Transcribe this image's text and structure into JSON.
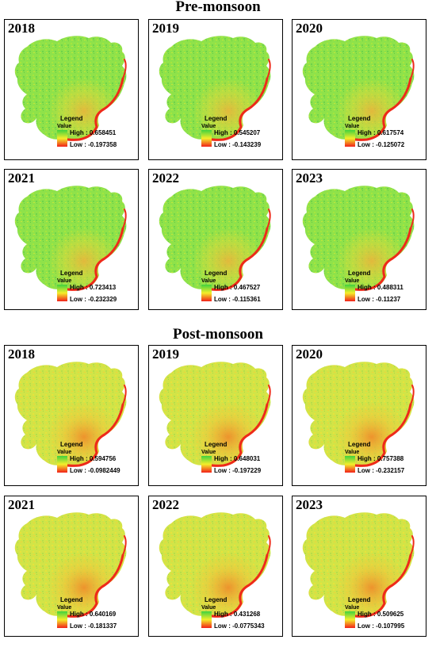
{
  "sections": [
    {
      "title": "Pre-monsoon",
      "palette": "green",
      "panels": [
        {
          "year": "2018",
          "legend": "Legend",
          "value_label": "Value",
          "high": "High : 0.658451",
          "low": "Low : -0.197358"
        },
        {
          "year": "2019",
          "legend": "Legend",
          "value_label": "Value",
          "high": "High : 0.545207",
          "low": "Low : -0.143239"
        },
        {
          "year": "2020",
          "legend": "Legend",
          "value_label": "Value",
          "high": "High : 0.617574",
          "low": "Low : -0.125072"
        },
        {
          "year": "2021",
          "legend": "Legend",
          "value_label": "Value",
          "high": "High : 0.723413",
          "low": "Low : -0.232329"
        },
        {
          "year": "2022",
          "legend": "Legend",
          "value_label": "Value",
          "high": "High : 0.467527",
          "low": "Low : -0.115361"
        },
        {
          "year": "2023",
          "legend": "Legend",
          "value_label": "Value",
          "high": "High : 0.488311",
          "low": "Low : -0.11237"
        }
      ]
    },
    {
      "title": "Post-monsoon",
      "palette": "yellow",
      "panels": [
        {
          "year": "2018",
          "legend": "Legend",
          "value_label": "Value",
          "high": "High : 0.594756",
          "low": "Low : -0.0982449"
        },
        {
          "year": "2019",
          "legend": "Legend",
          "value_label": "Value",
          "high": "High : 0.648031",
          "low": "Low : -0.197229"
        },
        {
          "year": "2020",
          "legend": "Legend",
          "value_label": "Value",
          "high": "High : 0.757388",
          "low": "Low : -0.232157"
        },
        {
          "year": "2021",
          "legend": "Legend",
          "value_label": "Value",
          "high": "High : 0.640169",
          "low": "Low : -0.181337"
        },
        {
          "year": "2022",
          "legend": "Legend",
          "value_label": "Value",
          "high": "High : 0.431268",
          "low": "Low : -0.0775343"
        },
        {
          "year": "2023",
          "legend": "Legend",
          "value_label": "Value",
          "high": "High : 0.509625",
          "low": "Low : -0.107995"
        }
      ]
    }
  ],
  "colors": {
    "ramp_high": "#3fd23f",
    "ramp_mid": "#f4ee2a",
    "ramp_low": "#f2201a",
    "river": "#ee2a1a",
    "pre_fill": "#8ee04a",
    "post_fill": "#cfe247"
  }
}
